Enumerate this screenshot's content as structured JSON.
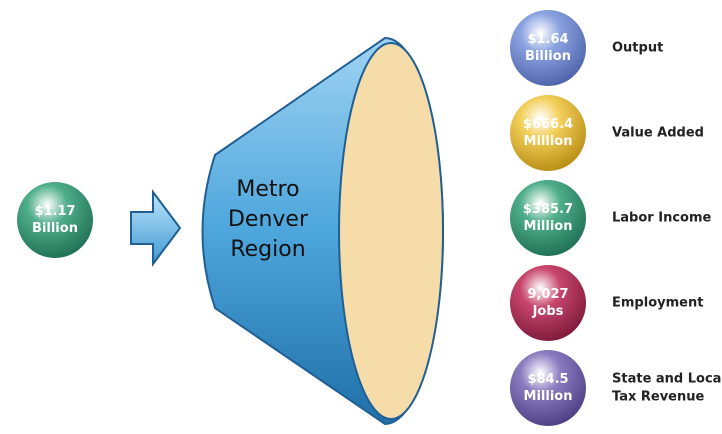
{
  "input": {
    "lines": [
      "$1.17",
      "Billion"
    ]
  },
  "center": {
    "lines": [
      "Metro",
      "Denver",
      "Region"
    ]
  },
  "outputs": [
    {
      "lines": [
        "$1.64",
        "Billion"
      ],
      "label": [
        "Output"
      ]
    },
    {
      "lines": [
        "$666.4",
        "Million"
      ],
      "label": [
        "Value Added"
      ]
    },
    {
      "lines": [
        "$385.7",
        "Million"
      ],
      "label": [
        "Labor Income"
      ]
    },
    {
      "lines": [
        "9,027",
        "Jobs"
      ],
      "label": [
        "Employment"
      ]
    },
    {
      "lines": [
        "$84.5",
        "Million"
      ],
      "label": [
        "State and Local",
        "Tax Revenue"
      ]
    }
  ]
}
